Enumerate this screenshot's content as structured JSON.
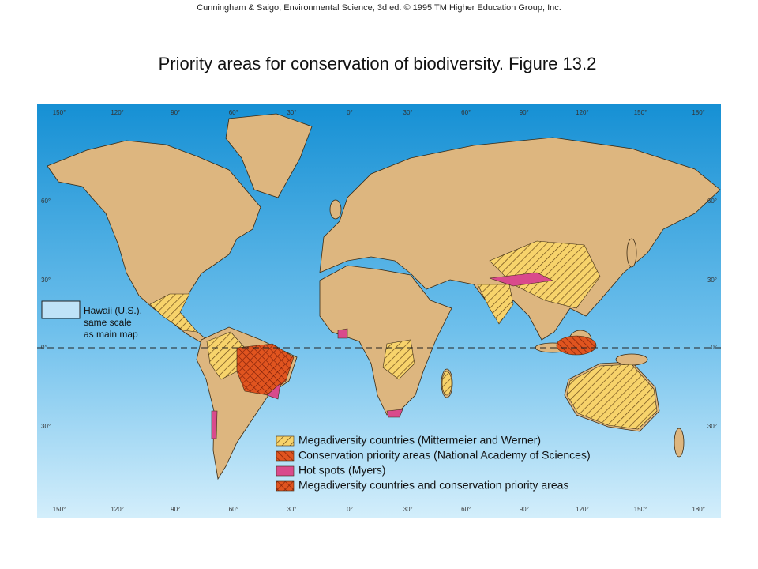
{
  "header": {
    "credit": "Cunningham & Saigo, Environmental Science, 3d ed. © 1995 TM Higher Education Group, Inc."
  },
  "title": "Priority areas for conservation of biodiversity. Figure 13.2",
  "map": {
    "longitude_labels_top": [
      "150°",
      "120°",
      "90°",
      "60°",
      "30°",
      "0°",
      "30°",
      "60°",
      "90°",
      "120°",
      "150°",
      "180°"
    ],
    "longitude_labels_bottom": [
      "150°",
      "120°",
      "90°",
      "60°",
      "30°",
      "0°",
      "30°",
      "60°",
      "90°",
      "120°",
      "150°",
      "180°"
    ],
    "latitude_labels_left": [
      "60°",
      "30°",
      "0°",
      "30°"
    ],
    "latitude_labels_right": [
      "60°",
      "30°",
      "0°",
      "30°"
    ]
  },
  "inset": {
    "label_lines": [
      "Hawaii (U.S.),",
      "same scale",
      "as main map"
    ]
  },
  "legend": {
    "items": [
      "Megadiversity countries (Mittermeier and Werner)",
      "Conservation priority areas (National Academy of Sciences)",
      "Hot spots (Myers)",
      "Megadiversity countries and conservation priority areas"
    ]
  }
}
